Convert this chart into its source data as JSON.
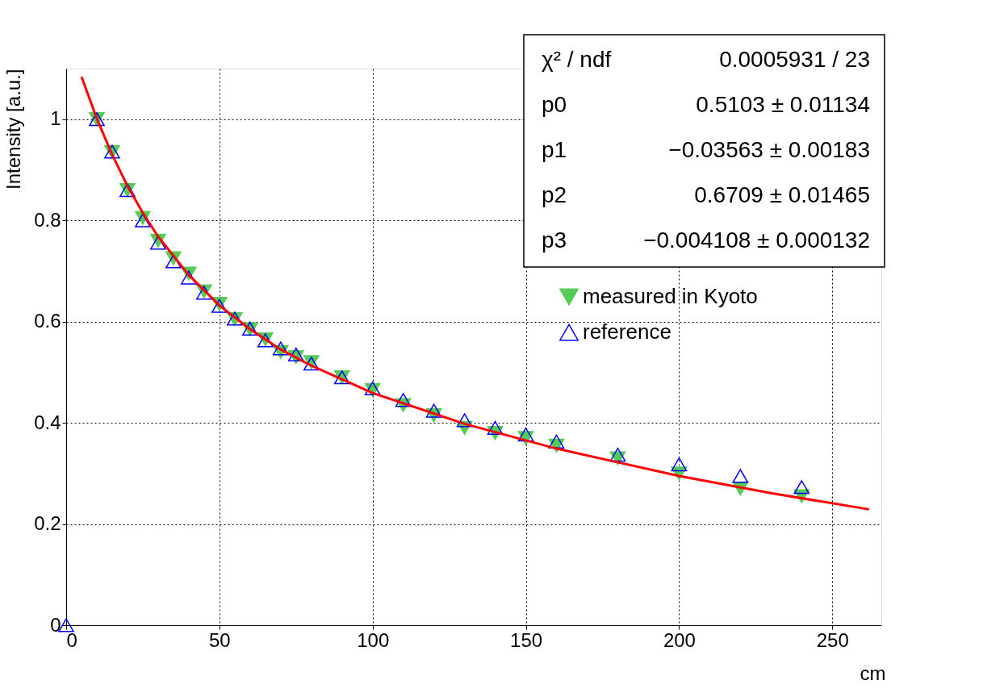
{
  "chart_data": {
    "type": "scatter",
    "xlabel": "cm",
    "ylabel": "Intensity [a.u.]",
    "xlim": [
      0,
      266
    ],
    "ylim": [
      0,
      1.1
    ],
    "xticks": [
      0,
      50,
      100,
      150,
      200,
      250
    ],
    "yticks": [
      0,
      0.2,
      0.4,
      0.6,
      0.8,
      1
    ],
    "grid": true,
    "legend": "top right",
    "annotations": [
      "χ² / ndf",
      "0.0005931 / 23",
      "p0",
      "0.5103 ± 0.01134",
      "p1",
      "−0.03563 ± 0.00183",
      "p2",
      "0.6709 ± 0.01465",
      "p3",
      "−0.004108 ± 0.000132"
    ],
    "series": [
      {
        "name": "measured in Kyoto",
        "color": "#55cc55",
        "marker": "triangle-down",
        "x": [
          10,
          15,
          20,
          25,
          30,
          35,
          40,
          45,
          50,
          55,
          60,
          65,
          70,
          75,
          80,
          90,
          100,
          110,
          120,
          130,
          140,
          150,
          160,
          180,
          200,
          220,
          240
        ],
        "values": [
          1.0,
          0.935,
          0.86,
          0.805,
          0.76,
          0.725,
          0.695,
          0.66,
          0.635,
          0.605,
          0.585,
          0.565,
          0.54,
          0.53,
          0.52,
          0.49,
          0.465,
          0.435,
          0.415,
          0.39,
          0.38,
          0.37,
          0.355,
          0.33,
          0.3,
          0.27,
          0.255
        ]
      },
      {
        "name": "reference",
        "color": "#0000ff",
        "marker": "triangle",
        "x": [
          0,
          10,
          15,
          20,
          25,
          30,
          35,
          40,
          45,
          50,
          55,
          60,
          65,
          70,
          75,
          80,
          90,
          100,
          110,
          120,
          130,
          140,
          150,
          160,
          180,
          200,
          220,
          240
        ],
        "values": [
          0,
          1.0,
          0.936,
          0.86,
          0.8,
          0.756,
          0.719,
          0.687,
          0.657,
          0.631,
          0.606,
          0.586,
          0.563,
          0.547,
          0.535,
          0.517,
          0.49,
          0.468,
          0.445,
          0.424,
          0.405,
          0.39,
          0.377,
          0.363,
          0.337,
          0.318,
          0.295,
          0.273
        ]
      },
      {
        "type": "line",
        "color": "#ff0000",
        "x": [
          5,
          10,
          15,
          20,
          25,
          30,
          40,
          50,
          60,
          70,
          80,
          100,
          130,
          160,
          200,
          230,
          262
        ],
        "values": [
          1.084,
          1.001,
          0.93,
          0.868,
          0.815,
          0.768,
          0.692,
          0.632,
          0.585,
          0.545,
          0.513,
          0.459,
          0.398,
          0.349,
          0.295,
          0.261,
          0.229
        ]
      }
    ]
  }
}
